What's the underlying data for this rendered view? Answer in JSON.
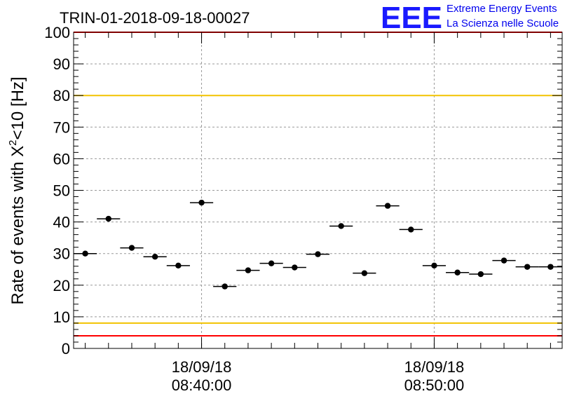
{
  "logo": {
    "text": "EEE",
    "line1": "Extreme Energy Events",
    "line2": "La Scienza nelle Scuole",
    "color": "#1a1aff"
  },
  "chart_data": {
    "type": "scatter",
    "title": "TRIN-01-2018-09-18-00027",
    "xlabel": "",
    "ylabel": "Rate of events with X",
    "ylabel_sup": "2",
    "ylabel_tail": "<10 [Hz]",
    "ylim": [
      0,
      100
    ],
    "yticks": [
      0,
      10,
      20,
      30,
      40,
      50,
      60,
      70,
      80,
      90,
      100
    ],
    "xlim": [
      "2018-09-18 08:34:30",
      "2018-09-18 08:55:30"
    ],
    "xticks": [
      {
        "x": "2018-09-18 08:40:00",
        "date": "18/09/18",
        "time": "08:40:00"
      },
      {
        "x": "2018-09-18 08:50:00",
        "date": "18/09/18",
        "time": "08:50:00"
      }
    ],
    "grid": true,
    "reference_lines": [
      {
        "y": 100,
        "color": "#ff0000"
      },
      {
        "y": 80,
        "color": "#f2c300"
      },
      {
        "y": 8,
        "color": "#f2c300"
      },
      {
        "y": 4,
        "color": "#ff0000"
      }
    ],
    "bin_width_seconds": 60,
    "series": [
      {
        "color": "#000000",
        "points": [
          {
            "x": "2018-09-18 08:35:00",
            "y": 30.0
          },
          {
            "x": "2018-09-18 08:36:00",
            "y": 41.0
          },
          {
            "x": "2018-09-18 08:37:00",
            "y": 31.8
          },
          {
            "x": "2018-09-18 08:38:00",
            "y": 29.0
          },
          {
            "x": "2018-09-18 08:39:00",
            "y": 26.2
          },
          {
            "x": "2018-09-18 08:40:00",
            "y": 46.1
          },
          {
            "x": "2018-09-18 08:41:00",
            "y": 19.6
          },
          {
            "x": "2018-09-18 08:42:00",
            "y": 24.7
          },
          {
            "x": "2018-09-18 08:43:00",
            "y": 26.9
          },
          {
            "x": "2018-09-18 08:44:00",
            "y": 25.6
          },
          {
            "x": "2018-09-18 08:45:00",
            "y": 29.8
          },
          {
            "x": "2018-09-18 08:46:00",
            "y": 38.7
          },
          {
            "x": "2018-09-18 08:47:00",
            "y": 23.8
          },
          {
            "x": "2018-09-18 08:48:00",
            "y": 45.1
          },
          {
            "x": "2018-09-18 08:49:00",
            "y": 37.6
          },
          {
            "x": "2018-09-18 08:50:00",
            "y": 26.2
          },
          {
            "x": "2018-09-18 08:51:00",
            "y": 24.0
          },
          {
            "x": "2018-09-18 08:52:00",
            "y": 23.5
          },
          {
            "x": "2018-09-18 08:53:00",
            "y": 27.8
          },
          {
            "x": "2018-09-18 08:54:00",
            "y": 25.8
          },
          {
            "x": "2018-09-18 08:55:00",
            "y": 25.8
          }
        ]
      }
    ]
  }
}
